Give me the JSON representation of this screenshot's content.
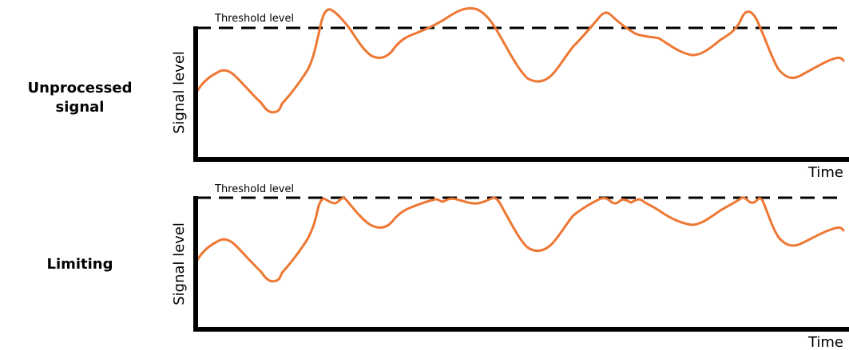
{
  "panels": [
    {
      "row_label_line1": "Unprocessed",
      "row_label_line2": "signal",
      "y_axis_label": "Signal level",
      "x_axis_label": "Time",
      "threshold_label": "Threshold level",
      "signal": "unprocessed"
    },
    {
      "row_label_line1": "Limiting",
      "row_label_line2": "",
      "y_axis_label": "Signal level",
      "x_axis_label": "Time",
      "threshold_label": "Threshold level",
      "signal": "limited"
    }
  ],
  "colors": {
    "signal": "#ee7733",
    "axis": "#000000",
    "threshold": "#000000",
    "text": "#000000"
  }
}
